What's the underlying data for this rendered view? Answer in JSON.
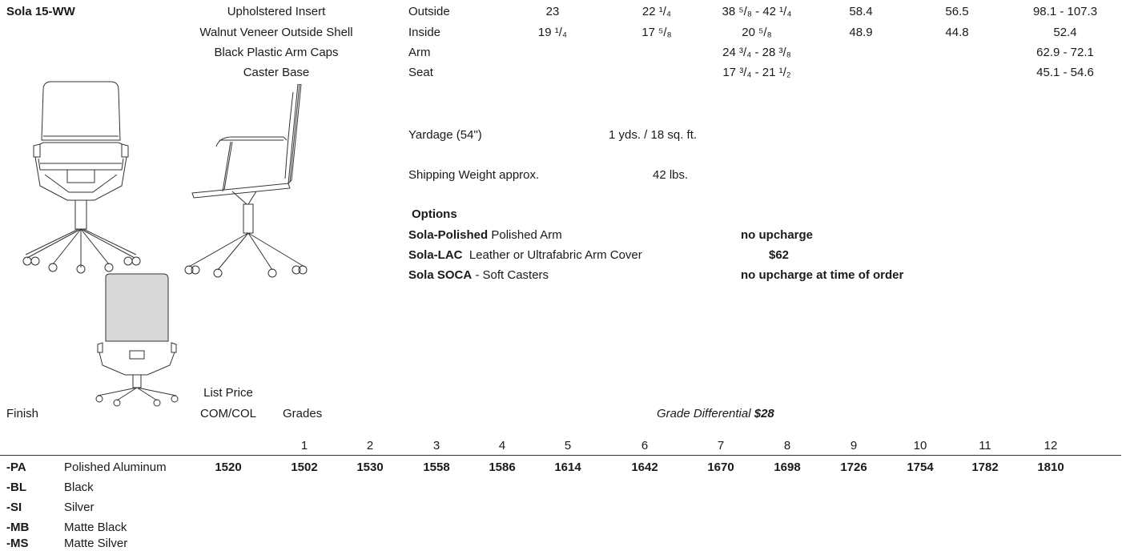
{
  "model": "Sola 15-WW",
  "materials": [
    "Upholstered Insert",
    "Walnut Veneer Outside Shell",
    "Black Plastic Arm Caps",
    "Caster Base"
  ],
  "dimensions": [
    {
      "label": "Outside",
      "w_in": "23",
      "d_in": "22 ¹/₄",
      "h_in": "38 ⁵/₈ - 42 ¹/₄",
      "w_cm": "58.4",
      "d_cm": "56.5",
      "h_cm": "98.1 - 107.3"
    },
    {
      "label": "Inside",
      "w_in": "19 ¹/₄",
      "d_in": "17 ⁵/₈",
      "h_in": "20 ⁵/₈",
      "w_cm": "48.9",
      "d_cm": "44.8",
      "h_cm": "52.4"
    },
    {
      "label": "Arm",
      "w_in": "",
      "d_in": "",
      "h_in": "24 ³/₄ - 28 ³/₈",
      "w_cm": "",
      "d_cm": "",
      "h_cm": "62.9 - 72.1"
    },
    {
      "label": "Seat",
      "w_in": "",
      "d_in": "",
      "h_in": "17 ³/₄ - 21 ¹/₂",
      "w_cm": "",
      "d_cm": "",
      "h_cm": "45.1 - 54.6"
    }
  ],
  "yardage": {
    "label": "Yardage (54\")",
    "value": "1 yds. / 18 sq. ft."
  },
  "shipping": {
    "label": "Shipping Weight approx.",
    "value": "42 lbs."
  },
  "options": {
    "heading": "Options",
    "items": [
      {
        "code": "Sola-Polished",
        "desc": " Polished Arm",
        "price": "no upcharge"
      },
      {
        "code": "Sola-LAC",
        "desc": "  Leather or Ultrafabric Arm Cover",
        "price": "$62"
      },
      {
        "code": "Sola SOCA",
        "desc": " - Soft Casters",
        "price": "no upcharge at time of order"
      }
    ]
  },
  "pricing": {
    "finish_label": "Finish",
    "list_price_label": "List Price",
    "com_col_label": "COM/COL",
    "grades_label": "Grades",
    "grade_diff_label": "Grade Differential",
    "grade_diff_value": "$28",
    "grades": [
      "1",
      "2",
      "3",
      "4",
      "5",
      "6",
      "7",
      "8",
      "9",
      "10",
      "11",
      "12"
    ],
    "com_col_price": "1520",
    "prices": [
      "1502",
      "1530",
      "1558",
      "1586",
      "1614",
      "1642",
      "1670",
      "1698",
      "1726",
      "1754",
      "1782",
      "1810"
    ]
  },
  "finishes": [
    {
      "code": "-PA",
      "name": "Polished Aluminum"
    },
    {
      "code": "-BL",
      "name": "Black"
    },
    {
      "code": "-SI",
      "name": "Silver"
    },
    {
      "code": "-MB",
      "name": "Matte Black"
    },
    {
      "code": "-MS",
      "name": "Matte Silver"
    }
  ]
}
